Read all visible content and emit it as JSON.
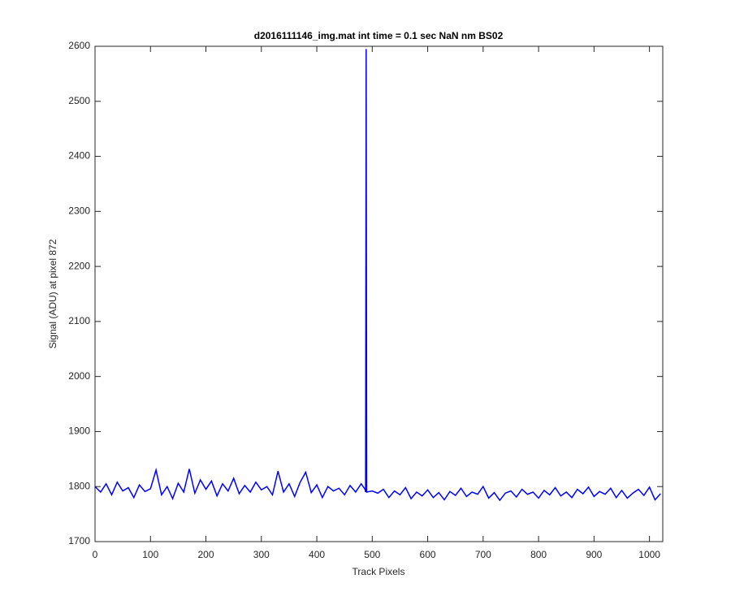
{
  "chart_data": {
    "type": "line",
    "title": "d2016111146_img.mat int time = 0.1 sec  NaN nm BS02",
    "x_label": "Track Pixels",
    "y_label": "Signal (ADU) at pixel 872",
    "xlim": [
      0,
      1024
    ],
    "ylim": [
      1700,
      2600
    ],
    "xticks": [
      0,
      100,
      200,
      300,
      400,
      500,
      600,
      700,
      800,
      900,
      1000
    ],
    "yticks": [
      1700,
      1800,
      1900,
      2000,
      2100,
      2200,
      2300,
      2400,
      2500,
      2600
    ],
    "x": [
      0,
      10,
      20,
      30,
      40,
      50,
      60,
      70,
      80,
      90,
      100,
      110,
      120,
      130,
      140,
      150,
      160,
      170,
      180,
      190,
      200,
      210,
      220,
      230,
      240,
      250,
      260,
      270,
      280,
      290,
      300,
      310,
      320,
      330,
      340,
      350,
      360,
      370,
      380,
      390,
      400,
      410,
      420,
      430,
      440,
      450,
      460,
      470,
      480,
      487,
      488,
      489,
      490,
      500,
      510,
      520,
      530,
      540,
      550,
      560,
      570,
      580,
      590,
      600,
      610,
      620,
      630,
      640,
      650,
      660,
      670,
      680,
      690,
      700,
      710,
      720,
      730,
      740,
      750,
      760,
      770,
      780,
      790,
      800,
      810,
      820,
      830,
      840,
      850,
      860,
      870,
      880,
      890,
      900,
      910,
      920,
      930,
      940,
      950,
      960,
      970,
      980,
      990,
      1000,
      1010,
      1020
    ],
    "series": [
      {
        "color": "#0000ff",
        "values": [
          1800,
          1790,
          1805,
          1785,
          1808,
          1792,
          1798,
          1780,
          1803,
          1791,
          1796,
          1830,
          1785,
          1800,
          1778,
          1806,
          1790,
          1832,
          1788,
          1812,
          1795,
          1810,
          1783,
          1805,
          1792,
          1815,
          1787,
          1802,
          1790,
          1808,
          1794,
          1800,
          1785,
          1828,
          1790,
          1805,
          1782,
          1808,
          1826,
          1789,
          1803,
          1780,
          1800,
          1792,
          1797,
          1785,
          1802,
          1790,
          1805,
          1795,
          1790,
          2595,
          1790,
          1792,
          1788,
          1795,
          1780,
          1792,
          1785,
          1798,
          1778,
          1790,
          1783,
          1794,
          1780,
          1789,
          1776,
          1791,
          1784,
          1797,
          1782,
          1790,
          1786,
          1800,
          1779,
          1789,
          1775,
          1788,
          1792,
          1781,
          1795,
          1786,
          1790,
          1779,
          1793,
          1785,
          1798,
          1783,
          1790,
          1780,
          1795,
          1787,
          1799,
          1782,
          1791,
          1786,
          1797,
          1780,
          1793,
          1779,
          1788,
          1795,
          1784,
          1799,
          1776,
          1787
        ]
      }
    ]
  }
}
